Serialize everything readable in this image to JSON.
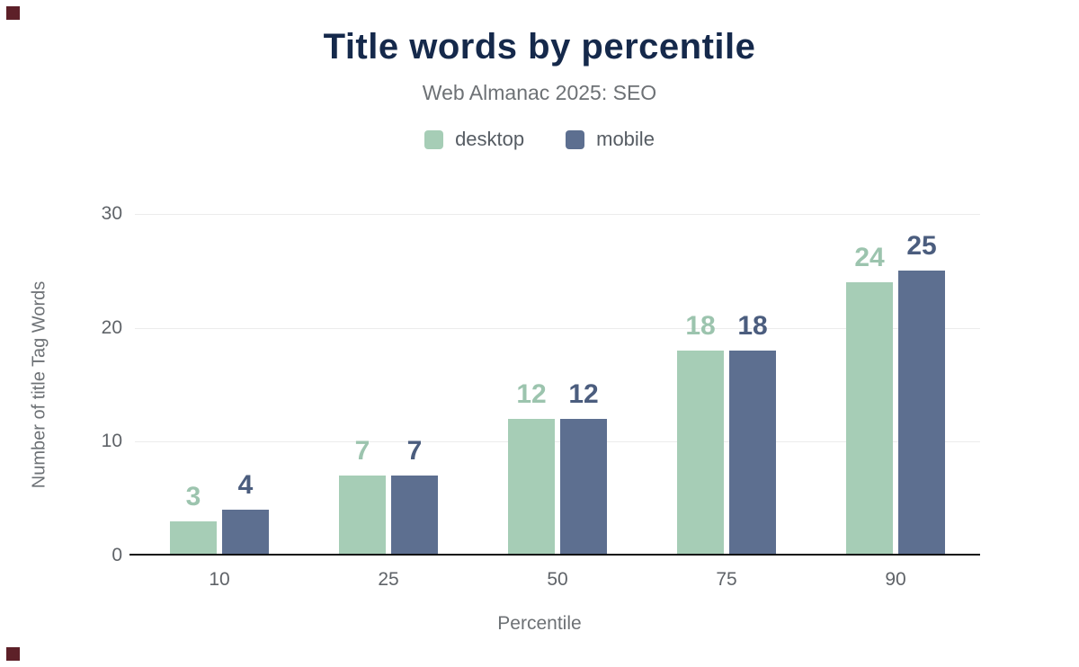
{
  "header": {
    "title": "Title words by percentile",
    "subtitle": "Web Almanac 2025: SEO"
  },
  "chart_data": {
    "type": "bar",
    "title": "Title words by percentile",
    "subtitle": "Web Almanac 2025: SEO",
    "categories": [
      "10",
      "25",
      "50",
      "75",
      "90"
    ],
    "series": [
      {
        "name": "desktop",
        "values": [
          3,
          7,
          12,
          18,
          24
        ],
        "color": "#a6cdb6",
        "label_color": "#9cc4ae"
      },
      {
        "name": "mobile",
        "values": [
          4,
          7,
          12,
          18,
          25
        ],
        "color": "#5d6f90",
        "label_color": "#4b5d7e"
      }
    ],
    "xlabel": "Percentile",
    "ylabel": "Number of title Tag Words",
    "ylim": [
      0,
      30
    ],
    "yticks": [
      0,
      10,
      20,
      30
    ],
    "grid": true,
    "legend_position": "top"
  },
  "colors": {
    "background": "#ffffff",
    "title": "#15294b",
    "subtitle": "#6d7175",
    "axis_text": "#5f6368",
    "gridline": "#ececec",
    "axis_line": "#111111",
    "corner_mark": "#5d2028"
  }
}
